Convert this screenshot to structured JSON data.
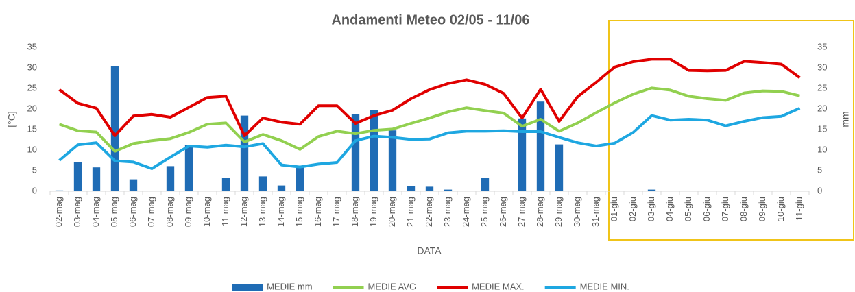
{
  "chart_data": {
    "type": "bar_line",
    "title": "Andamenti Meteo 02/05 - 11/06",
    "xlabel": "DATA",
    "ylabel": "[°C]",
    "y2label": "mm",
    "categories": [
      "02-mag",
      "03-mag",
      "04-mag",
      "05-mag",
      "06-mag",
      "07-mag",
      "08-mag",
      "09-mag",
      "10-mag",
      "11-mag",
      "12-mag",
      "13-mag",
      "14-mag",
      "15-mag",
      "16-mag",
      "17-mag",
      "18-mag",
      "19-mag",
      "20-mag",
      "21-mag",
      "22-mag",
      "23-mag",
      "24-mag",
      "25-mag",
      "26-mag",
      "27-mag",
      "28-mag",
      "29-mag",
      "30-mag",
      "31-mag",
      "01-giu",
      "02-giu",
      "03-giu",
      "04-giu",
      "05-giu",
      "06-giu",
      "07-giu",
      "08-giu",
      "09-giu",
      "10-giu",
      "11-giu"
    ],
    "series": [
      {
        "name": "MEDIE mm",
        "type": "bar",
        "axis": "y2",
        "color": "#1f6cb5",
        "values": [
          0.2,
          7,
          5.8,
          30.5,
          2.9,
          0,
          6.1,
          11.3,
          0.1,
          3.3,
          18.4,
          3.6,
          1.4,
          5.9,
          0.1,
          0.1,
          18.8,
          19.7,
          14.8,
          1.2,
          1.1,
          0.4,
          0.1,
          3.2,
          0.1,
          17.7,
          21.8,
          11.4,
          0,
          0.1,
          0,
          0,
          0.4,
          0,
          0.1,
          0.1,
          0.1,
          0.1,
          0.1,
          0.1,
          0
        ]
      },
      {
        "name": "MEDIE AVG",
        "type": "line",
        "color": "#92d050",
        "values": [
          16.3,
          14.7,
          14.4,
          9.7,
          11.6,
          12.3,
          12.8,
          14.3,
          16.3,
          16.6,
          12.0,
          13.8,
          12.3,
          10.2,
          13.3,
          14.6,
          14.0,
          14.8,
          15.1,
          16.5,
          17.8,
          19.3,
          20.3,
          19.6,
          19.0,
          15.8,
          17.5,
          14.6,
          16.6,
          19.1,
          21.5,
          23.6,
          25.1,
          24.6,
          23.1,
          22.5,
          22.1,
          23.9,
          24.4,
          24.3,
          23.2
        ]
      },
      {
        "name": "MEDIE MAX.",
        "type": "line",
        "color": "#e00000",
        "values": [
          24.7,
          21.4,
          20.2,
          13.5,
          18.3,
          18.7,
          18.0,
          20.4,
          22.8,
          23.1,
          13.5,
          17.8,
          16.8,
          16.3,
          20.8,
          20.8,
          16.5,
          18.4,
          19.7,
          22.5,
          24.7,
          26.2,
          27.1,
          26.0,
          23.8,
          17.8,
          24.8,
          17.0,
          23.0,
          26.5,
          30.2,
          31.5,
          32.1,
          32.1,
          29.4,
          29.3,
          29.4,
          31.6,
          31.3,
          30.9,
          27.6
        ]
      },
      {
        "name": "MEDIE MIN.",
        "type": "line",
        "color": "#1ea7e1",
        "values": [
          7.5,
          11.3,
          11.8,
          7.4,
          7.1,
          5.5,
          8.3,
          11.0,
          10.7,
          11.2,
          10.8,
          11.6,
          6.4,
          5.9,
          6.6,
          7.0,
          12.3,
          13.4,
          13.1,
          12.6,
          12.7,
          14.2,
          14.6,
          14.6,
          14.7,
          14.5,
          14.5,
          13.1,
          11.8,
          11.0,
          11.7,
          14.3,
          18.4,
          17.3,
          17.5,
          17.3,
          15.9,
          17.0,
          17.9,
          18.2,
          20.2
        ]
      }
    ],
    "ylim": [
      0,
      35
    ],
    "yticks": [
      0,
      5,
      10,
      15,
      20,
      25,
      30,
      35
    ],
    "y2lim": [
      0,
      35
    ],
    "y2ticks": [
      0,
      5,
      10,
      15,
      20,
      25,
      30,
      35
    ],
    "grid": false,
    "legend": "bottom"
  }
}
